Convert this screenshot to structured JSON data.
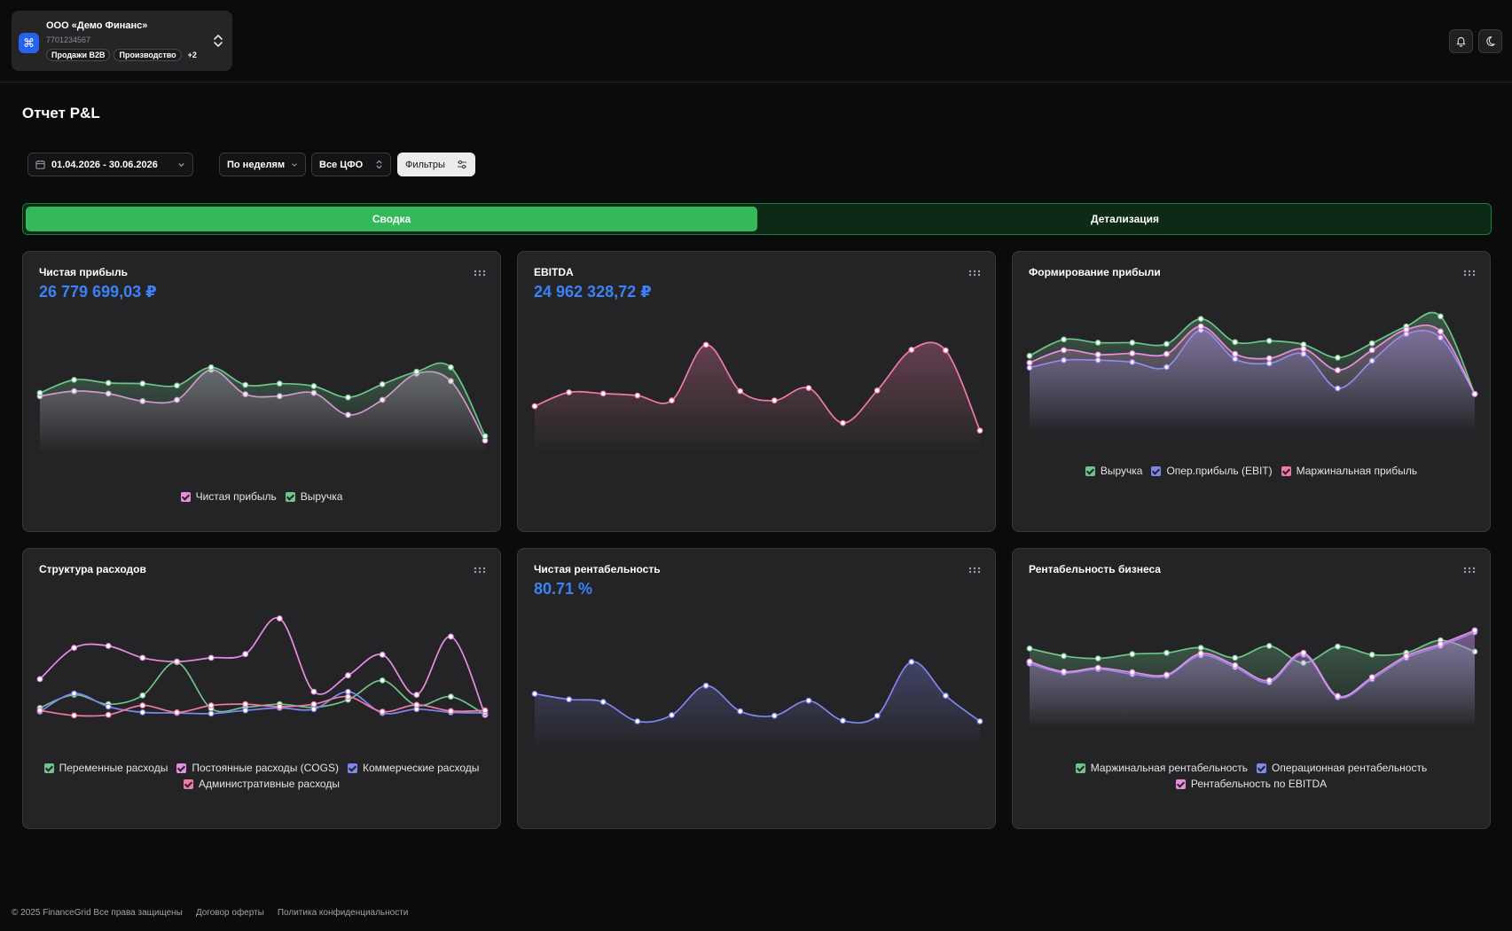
{
  "org": {
    "logo_glyph": "⌘",
    "name": "ООО «Демо Финанс»",
    "inn": "7701234567",
    "tags": [
      "Продажи B2B",
      "Производство"
    ],
    "more": "+2"
  },
  "page_title": "Отчет P&L",
  "controls": {
    "date_range": "01.04.2026 - 30.06.2026",
    "grouping": "По неделям",
    "cfo": "Все ЦФО",
    "filters": "Фильтры"
  },
  "tabs": {
    "summary": "Сводка",
    "details": "Детализация"
  },
  "colors": {
    "green": "#6ec48b",
    "pink": "#e88ee0",
    "violet": "#7f86f0",
    "rose": "#f07aa6",
    "value_blue": "#3b82f6"
  },
  "cards": {
    "net_profit": {
      "title": "Чистая прибыль",
      "value": "26 779 699,03 ₽",
      "legend": [
        "Чистая прибыль",
        "Выручка"
      ]
    },
    "ebitda": {
      "title": "EBITDA",
      "value": "24 962 328,72 ₽"
    },
    "profit_formation": {
      "title": "Формирование прибыли",
      "legend": [
        "Выручка",
        "Опер.прибыль (EBIT)",
        "Маржинальная прибыль"
      ]
    },
    "expense_structure": {
      "title": "Структура расходов",
      "legend": [
        "Переменные расходы",
        "Постоянные расходы (COGS)",
        "Коммерческие расходы",
        "Административные расходы"
      ]
    },
    "net_margin": {
      "title": "Чистая рентабельность",
      "value": "80.71 %"
    },
    "business_margin": {
      "title": "Рентабельность бизнеса",
      "legend": [
        "Маржинальная рентабельность",
        "Операционная рентабельность",
        "Рентабельность по EBITDA"
      ]
    }
  },
  "chart_data": [
    {
      "type": "area",
      "title": "Чистая прибыль",
      "x": [
        1,
        2,
        3,
        4,
        5,
        6,
        7,
        8,
        9,
        10,
        11,
        12,
        13,
        14
      ],
      "series": [
        {
          "name": "Чистая прибыль",
          "color": "#e88ee0",
          "values": [
            0.74,
            0.82,
            0.78,
            0.66,
            0.68,
            1.16,
            0.77,
            0.74,
            0.79,
            0.44,
            0.68,
            1.1,
            0.98,
            0.03
          ]
        },
        {
          "name": "Выручка",
          "color": "#6ec48b",
          "values": [
            0.79,
            1.0,
            0.95,
            0.94,
            0.91,
            1.2,
            0.92,
            0.94,
            0.9,
            0.72,
            0.93,
            1.13,
            1.2,
            0.1
          ]
        }
      ]
    },
    {
      "type": "area",
      "title": "EBITDA",
      "x": [
        1,
        2,
        3,
        4,
        5,
        6,
        7,
        8,
        9,
        10,
        11,
        12,
        13,
        14
      ],
      "series": [
        {
          "name": "EBITDA",
          "color": "#f07aa6",
          "values": [
            0.58,
            0.8,
            0.78,
            0.75,
            0.67,
            1.56,
            0.82,
            0.67,
            0.87,
            0.31,
            0.83,
            1.48,
            1.47,
            0.19
          ]
        }
      ]
    },
    {
      "type": "area",
      "title": "Формирование прибыли",
      "x": [
        1,
        2,
        3,
        4,
        5,
        6,
        7,
        8,
        9,
        10,
        11,
        12,
        13,
        14
      ],
      "series": [
        {
          "name": "Выручка",
          "color": "#6ec48b",
          "values": [
            1.03,
            1.29,
            1.24,
            1.24,
            1.22,
            1.62,
            1.25,
            1.27,
            1.21,
            1.0,
            1.23,
            1.5,
            1.66,
            0.42
          ]
        },
        {
          "name": "Опер.прибыль (EBIT)",
          "color": "#7f86f0",
          "values": [
            0.84,
            0.96,
            0.96,
            0.93,
            0.85,
            1.44,
            0.98,
            0.91,
            1.06,
            0.51,
            0.95,
            1.38,
            1.32,
            0.42
          ]
        },
        {
          "name": "Маржинальная прибыль",
          "color": "#e88ee0",
          "values": [
            0.92,
            1.12,
            1.05,
            1.07,
            1.06,
            1.5,
            1.06,
            0.99,
            1.14,
            0.8,
            1.12,
            1.45,
            1.42,
            0.42
          ]
        }
      ]
    },
    {
      "type": "line",
      "title": "Структура расходов",
      "x": [
        1,
        2,
        3,
        4,
        5,
        6,
        7,
        8,
        9,
        10,
        11,
        12,
        13,
        14
      ],
      "series": [
        {
          "name": "Переменные расходы",
          "color": "#6ec48b",
          "values": [
            0.15,
            0.36,
            0.21,
            0.35,
            0.88,
            0.14,
            0.16,
            0.21,
            0.16,
            0.28,
            0.59,
            0.19,
            0.33,
            0.04
          ]
        },
        {
          "name": "Постоянные расходы (COGS)",
          "color": "#e88ee0",
          "values": [
            0.61,
            1.11,
            1.14,
            0.95,
            0.89,
            0.95,
            1.01,
            1.58,
            0.41,
            0.67,
            1.0,
            0.36,
            1.29,
            0.04
          ]
        },
        {
          "name": "Коммерческие расходы",
          "color": "#7f86f0",
          "values": [
            0.09,
            0.38,
            0.17,
            0.08,
            0.07,
            0.06,
            0.11,
            0.15,
            0.13,
            0.41,
            0.07,
            0.13,
            0.08,
            0.07
          ]
        },
        {
          "name": "Административные расходы",
          "color": "#f07aa6",
          "values": [
            0.11,
            0.03,
            0.04,
            0.19,
            0.08,
            0.19,
            0.21,
            0.17,
            0.21,
            0.33,
            0.09,
            0.2,
            0.1,
            0.11
          ]
        }
      ]
    },
    {
      "type": "area",
      "title": "Чистая рентабельность",
      "x": [
        1,
        2,
        3,
        4,
        5,
        6,
        7,
        8,
        9,
        10,
        11,
        12,
        13,
        14
      ],
      "series": [
        {
          "name": "Чистая рентабельность",
          "color": "#7f86f0",
          "values": [
            0.73,
            0.64,
            0.6,
            0.29,
            0.39,
            0.86,
            0.45,
            0.38,
            0.62,
            0.3,
            0.38,
            1.24,
            0.7,
            0.29
          ]
        }
      ]
    },
    {
      "type": "area",
      "title": "Рентабельность бизнеса",
      "x": [
        1,
        2,
        3,
        4,
        5,
        6,
        7,
        8,
        9,
        10,
        11,
        12,
        13,
        14
      ],
      "series": [
        {
          "name": "Маржинальная рентабельность",
          "color": "#6ec48b",
          "values": [
            1.1,
            0.98,
            0.94,
            1.01,
            1.03,
            1.11,
            0.95,
            1.14,
            0.87,
            1.13,
            1.0,
            1.03,
            1.23,
            1.05
          ]
        },
        {
          "name": "Операционная рентабельность",
          "color": "#7f86f0",
          "values": [
            0.86,
            0.71,
            0.77,
            0.69,
            0.66,
            0.99,
            0.8,
            0.56,
            1.0,
            0.32,
            0.61,
            0.95,
            1.14,
            1.36
          ]
        },
        {
          "name": "Рентабельность по EBITDA",
          "color": "#e88ee0",
          "values": [
            0.89,
            0.73,
            0.79,
            0.72,
            0.68,
            1.02,
            0.83,
            0.59,
            1.03,
            0.34,
            0.64,
            0.98,
            1.17,
            1.39
          ]
        }
      ]
    }
  ],
  "footer": {
    "copyright": "© 2025 FinanceGrid Все права защищены",
    "offer": "Договор оферты",
    "privacy": "Политика конфиденциальности"
  }
}
